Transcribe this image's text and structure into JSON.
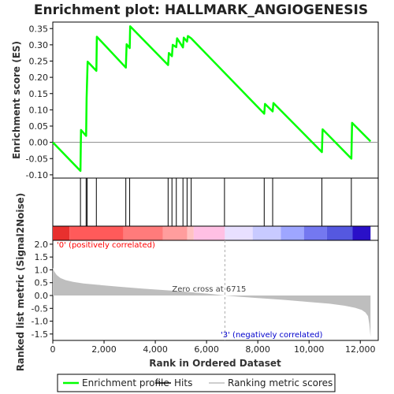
{
  "chart_data": {
    "type": "line",
    "title": "Enrichment plot: HALLMARK_ANGIOGENESIS",
    "es_panel": {
      "ylabel": "Enrichment score (ES)",
      "ylim": [
        -0.11,
        0.37
      ],
      "yticks": [
        -0.1,
        -0.05,
        0.0,
        0.05,
        0.1,
        0.15,
        0.2,
        0.25,
        0.3,
        0.35
      ],
      "ytick_labels": [
        "-0.10",
        "-0.05",
        "0.00",
        "0.05",
        "0.10",
        "0.15",
        "0.20",
        "0.25",
        "0.30",
        "0.35"
      ],
      "line_color": "#00ff00",
      "series": [
        {
          "name": "Enrichment profile",
          "x": [
            0,
            1080,
            1100,
            1300,
            1320,
            1360,
            1700,
            1720,
            2850,
            2880,
            3000,
            3020,
            4500,
            4530,
            4650,
            4680,
            4820,
            4850,
            5080,
            5110,
            5240,
            5270,
            5400,
            8250,
            8280,
            8580,
            8610,
            10500,
            10530,
            11650,
            11680,
            12400
          ],
          "y": [
            0.0,
            -0.088,
            0.038,
            0.02,
            0.135,
            0.248,
            0.22,
            0.325,
            0.23,
            0.302,
            0.29,
            0.357,
            0.238,
            0.275,
            0.265,
            0.3,
            0.293,
            0.32,
            0.292,
            0.322,
            0.31,
            0.327,
            0.32,
            0.088,
            0.118,
            0.095,
            0.121,
            -0.03,
            0.04,
            -0.05,
            0.06,
            0.003
          ]
        }
      ]
    },
    "hits_panel": {
      "hit_positions": [
        1080,
        1300,
        1340,
        1700,
        2850,
        3000,
        4500,
        4650,
        4820,
        5080,
        5240,
        5400,
        6700,
        8250,
        8580,
        10500,
        11650
      ]
    },
    "color_bar": {
      "segments": [
        {
          "from": 0,
          "to": 650,
          "color": "#e8302e"
        },
        {
          "from": 650,
          "to": 2750,
          "color": "#ff5a5a"
        },
        {
          "from": 2750,
          "to": 4300,
          "color": "#ff7b7b"
        },
        {
          "from": 4300,
          "to": 5250,
          "color": "#ff9d9d"
        },
        {
          "from": 5250,
          "to": 5500,
          "color": "#ffc2c2"
        },
        {
          "from": 5500,
          "to": 6715,
          "color": "#ffc0e4"
        },
        {
          "from": 6715,
          "to": 7800,
          "color": "#e8e0ff"
        },
        {
          "from": 7800,
          "to": 8900,
          "color": "#c8caff"
        },
        {
          "from": 8900,
          "to": 9800,
          "color": "#9ea6ff"
        },
        {
          "from": 9800,
          "to": 10700,
          "color": "#7478f0"
        },
        {
          "from": 10700,
          "to": 11700,
          "color": "#5558e0"
        },
        {
          "from": 11700,
          "to": 12400,
          "color": "#2a10c8"
        }
      ]
    },
    "metric_panel": {
      "ylabel": "Ranked list metric (Signal2Noise)",
      "xlabel": "Rank in Ordered Dataset",
      "ylim": [
        -1.75,
        2.15
      ],
      "yticks": [
        -1.5,
        -1.0,
        -0.5,
        0.0,
        0.5,
        1.0,
        1.5,
        2.0
      ],
      "ytick_labels": [
        "-1.5",
        "-1.0",
        "-0.5",
        "0.0",
        "0.5",
        "1.0",
        "1.5",
        "2.0"
      ],
      "xlim": [
        0,
        12700
      ],
      "xticks": [
        0,
        2000,
        4000,
        6000,
        8000,
        10000,
        12000
      ],
      "xtick_labels": [
        "0",
        "2,000",
        "4,000",
        "6,000",
        "8,000",
        "10,000",
        "12,000"
      ],
      "fill_color": "#bebebe",
      "metric_curve": {
        "x": [
          0,
          50,
          150,
          300,
          500,
          800,
          1200,
          1700,
          2500,
          3500,
          4500,
          5500,
          6200,
          6715,
          7300,
          8000,
          9000,
          10000,
          10800,
          11400,
          11800,
          12050,
          12200,
          12300,
          12350,
          12400
        ],
        "y": [
          1.08,
          0.95,
          0.8,
          0.68,
          0.6,
          0.53,
          0.47,
          0.42,
          0.35,
          0.27,
          0.2,
          0.12,
          0.06,
          0.0,
          -0.05,
          -0.1,
          -0.17,
          -0.25,
          -0.32,
          -0.4,
          -0.48,
          -0.56,
          -0.66,
          -0.8,
          -1.1,
          -1.6
        ]
      },
      "zero_cross_label": "Zero cross at 6715",
      "zero_cross_x": 6715,
      "positive_label": "'0' (positively correlated)",
      "negative_label": "'3' (negatively correlated)",
      "positive_label_color": "#ff0000",
      "negative_label_color": "#0000cc"
    },
    "legend": {
      "items": [
        {
          "label": "Enrichment profile",
          "color": "#00ff00"
        },
        {
          "label": "Hits",
          "color": "#000000"
        },
        {
          "label": "Ranking metric scores",
          "color": "#bebebe"
        }
      ]
    }
  }
}
